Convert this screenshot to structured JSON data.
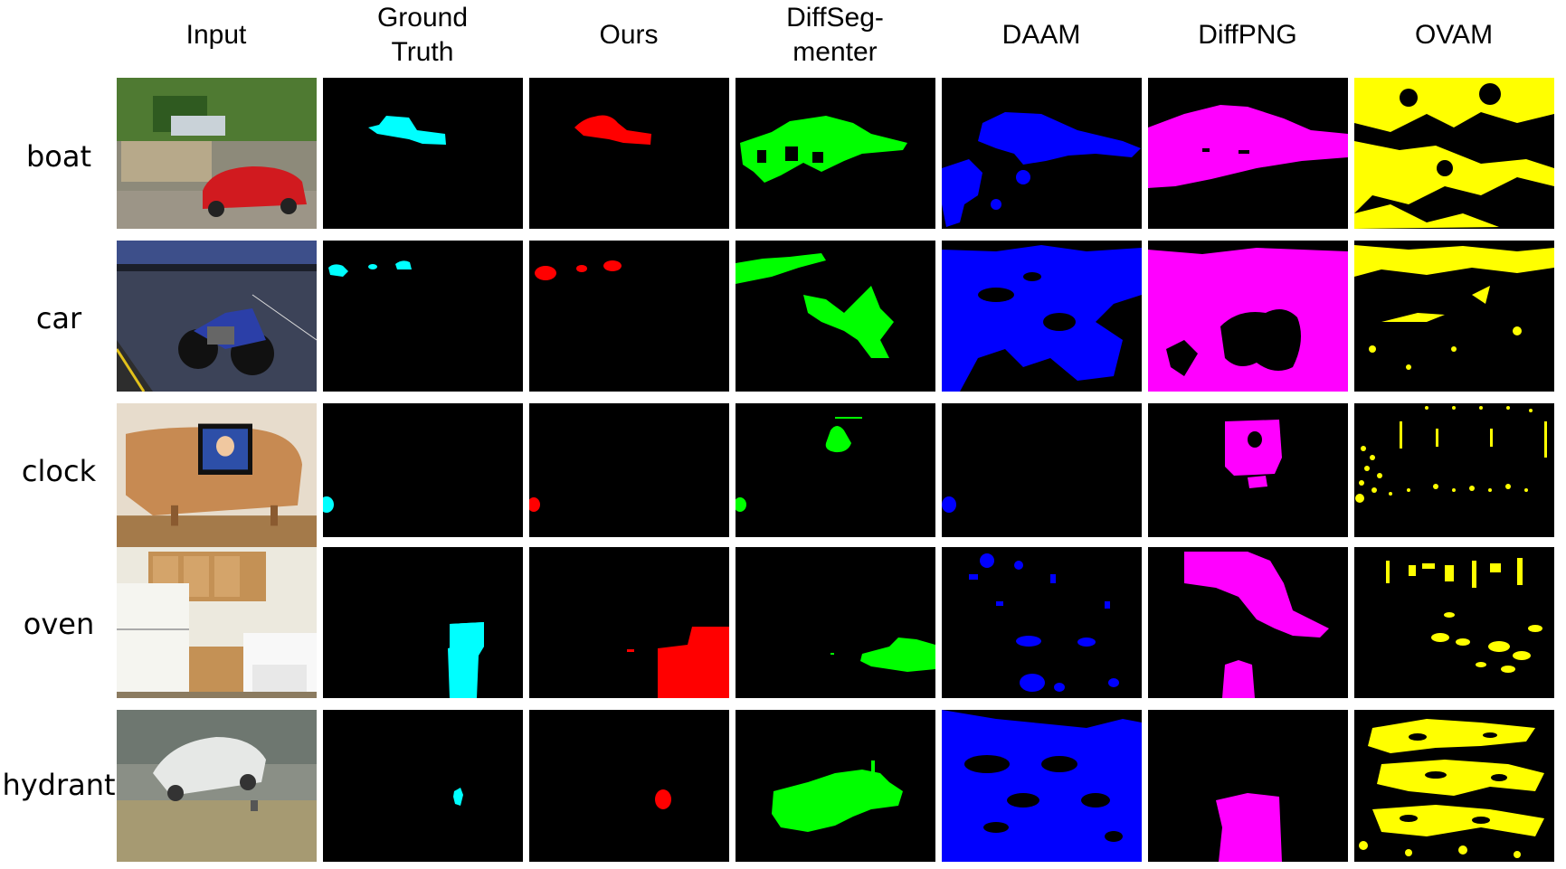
{
  "columns": [
    "Input",
    "Ground\nTruth",
    "Ours",
    "DiffSeg-\nmenter",
    "DAAM",
    "DiffPNG",
    "OVAM"
  ],
  "rows": [
    "boat",
    "car",
    "clock",
    "oven",
    "hydrant"
  ],
  "colors": {
    "ground_truth": "#00ffff",
    "ours": "#ff0000",
    "diffsegmenter": "#00ff00",
    "daam": "#0000ff",
    "diffpng": "#ff00ff",
    "ovam": "#ffff00",
    "background": "#000000"
  }
}
